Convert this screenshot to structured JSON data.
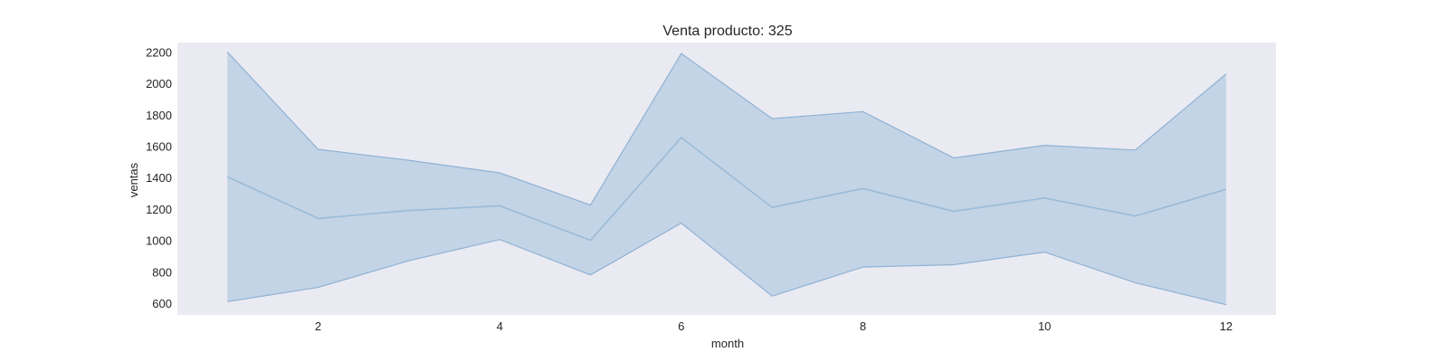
{
  "chart_data": {
    "type": "area",
    "title": "Venta producto: 325",
    "xlabel": "month",
    "ylabel": "ventas",
    "xlim": [
      0.45,
      12.55
    ],
    "ylim": [
      525,
      2260
    ],
    "xticks": [
      2,
      4,
      6,
      8,
      10,
      12
    ],
    "yticks": [
      600,
      800,
      1000,
      1200,
      1400,
      1600,
      1800,
      2000,
      2200
    ],
    "grid": false,
    "x": [
      1,
      2,
      3,
      4,
      5,
      6,
      7,
      8,
      9,
      10,
      11,
      12
    ],
    "series": [
      {
        "values": [
          1405,
          1140,
          1190,
          1220,
          1000,
          1655,
          1210,
          1330,
          1185,
          1270,
          1155,
          1325
        ],
        "lower": [
          610,
          700,
          870,
          1005,
          780,
          1110,
          645,
          830,
          845,
          925,
          730,
          590
        ],
        "upper": [
          2200,
          1580,
          1510,
          1430,
          1225,
          2190,
          1775,
          1820,
          1525,
          1605,
          1575,
          2060
        ]
      }
    ],
    "colors": {
      "plot_background": "#eaeaf2",
      "band_fill": "#a9c4de",
      "band_edge": "#8fb2d4",
      "line": "#9bbbd8"
    }
  }
}
